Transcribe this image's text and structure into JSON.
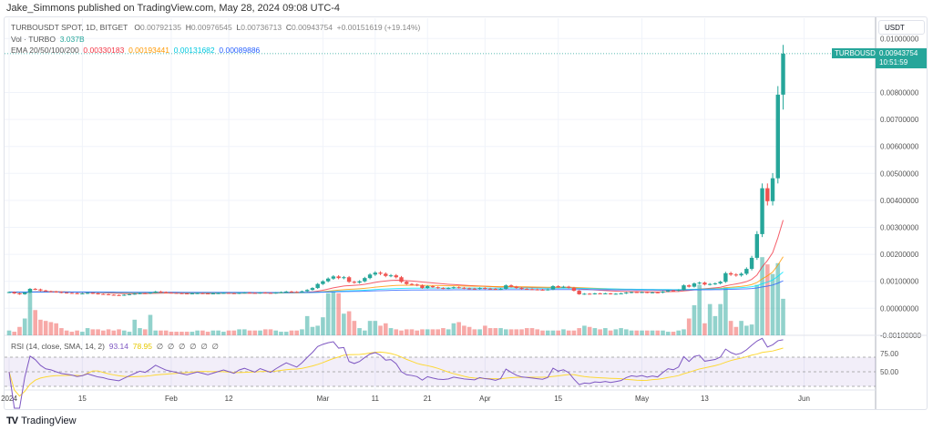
{
  "publisher": "Jake_Simmons published on TradingView.com, May 28, 2024 09:08 UTC-4",
  "legend": {
    "symbol": "TURBOUSDT SPOT, 1D, BITGET",
    "o_label": "O",
    "o": "0.00792135",
    "h_label": "H",
    "h": "0.00976545",
    "l_label": "L",
    "l": "0.00736713",
    "c_label": "C",
    "c": "0.00943754",
    "change": "+0.00151619 (+19.14%)",
    "vol_label": "Vol · TURBO",
    "vol": "3.037B",
    "ema_label": "EMA 20/50/100/200",
    "ema20": "0.00330183",
    "ema50": "0.00193441",
    "ema100": "0.00131682",
    "ema200": "0.00089886"
  },
  "rsi_legend": {
    "label": "RSI (14, close, SMA, 14, 2)",
    "rsi": "93.14",
    "sma": "78.95",
    "empty_values": [
      "∅",
      "∅",
      "∅",
      "∅",
      "∅",
      "∅"
    ]
  },
  "price_axis": {
    "currency": "USDT",
    "ticks": [
      "0.01000000",
      "0.00800000",
      "0.00700000",
      "0.00600000",
      "0.00500000",
      "0.00400000",
      "0.00300000",
      "0.00200000",
      "0.00100000",
      "0.00000000",
      "-0.00100000"
    ],
    "tick_values": [
      0.01,
      0.008,
      0.007,
      0.006,
      0.005,
      0.004,
      0.003,
      0.002,
      0.001,
      0,
      -0.001
    ]
  },
  "rsi_axis": {
    "ticks": [
      "75.00",
      "50.00"
    ],
    "tick_values": [
      75,
      50
    ]
  },
  "last_price_tag": {
    "symbol": "TURBOUSDT",
    "price": "0.00943754",
    "countdown": "10:51:59"
  },
  "time_axis": {
    "labels": [
      "2024",
      "15",
      "Feb",
      "12",
      "Mar",
      "11",
      "21",
      "Apr",
      "15",
      "May",
      "13",
      "Jun"
    ],
    "day_index": [
      0,
      14,
      31,
      42,
      60,
      70,
      80,
      91,
      105,
      121,
      133,
      152
    ]
  },
  "colors": {
    "up": "#26a69a",
    "down": "#ef5350",
    "ema20": "#f23645",
    "ema50": "#ff9800",
    "ema100": "#00e5ff",
    "ema200": "#2962ff",
    "rsi": "#7e57c2",
    "rsi_sma": "#fdd835"
  },
  "brand": "TradingView",
  "chart_data": {
    "type": "candlestick",
    "title": "TURBOUSDT SPOT, 1D, BITGET",
    "x_start": "2024-01-01",
    "x_end": "2024-05-28",
    "ylim": [
      -0.001,
      0.0105
    ],
    "last_high": 0.00976545,
    "last_low": 0.00736713,
    "closes": [
      0.0006,
      0.00055,
      0.00052,
      0.00058,
      0.00072,
      0.0007,
      0.00066,
      0.00063,
      0.00062,
      0.0006,
      0.00058,
      0.00057,
      0.00056,
      0.00054,
      0.00055,
      0.00057,
      0.00055,
      0.00053,
      0.00052,
      0.0005,
      0.00049,
      0.00048,
      0.0005,
      0.00052,
      0.00054,
      0.00056,
      0.00055,
      0.00058,
      0.00062,
      0.0006,
      0.00058,
      0.00057,
      0.00056,
      0.00055,
      0.00054,
      0.00055,
      0.00056,
      0.00055,
      0.00054,
      0.00055,
      0.00056,
      0.00057,
      0.00056,
      0.00055,
      0.00057,
      0.00058,
      0.00057,
      0.00056,
      0.00058,
      0.00057,
      0.00056,
      0.00058,
      0.0006,
      0.00062,
      0.00061,
      0.0006,
      0.00063,
      0.00068,
      0.00075,
      0.0009,
      0.001,
      0.0011,
      0.00118,
      0.00112,
      0.00115,
      0.00098,
      0.00095,
      0.001,
      0.00112,
      0.00125,
      0.00132,
      0.00128,
      0.0012,
      0.00122,
      0.00115,
      0.00098,
      0.0009,
      0.00088,
      0.00085,
      0.00075,
      0.00082,
      0.00078,
      0.00075,
      0.00074,
      0.00075,
      0.00078,
      0.00076,
      0.00074,
      0.00073,
      0.00072,
      0.00075,
      0.00073,
      0.00072,
      0.0007,
      0.00072,
      0.00085,
      0.0008,
      0.00075,
      0.00072,
      0.00071,
      0.0007,
      0.00069,
      0.00068,
      0.0007,
      0.00082,
      0.00078,
      0.0008,
      0.00076,
      0.00065,
      0.00052,
      0.00054,
      0.00053,
      0.00055,
      0.00054,
      0.00055,
      0.00053,
      0.00054,
      0.00055,
      0.00058,
      0.0006,
      0.00059,
      0.0006,
      0.00058,
      0.00059,
      0.00058,
      0.00062,
      0.00066,
      0.00065,
      0.00068,
      0.00085,
      0.0008,
      0.00092,
      0.00095,
      0.00088,
      0.0009,
      0.00092,
      0.00098,
      0.0013,
      0.00125,
      0.00122,
      0.00128,
      0.00146,
      0.00187,
      0.00275,
      0.00445,
      0.00397,
      0.00482,
      0.00792,
      0.00944
    ],
    "volume_billions": [
      0.4,
      0.3,
      0.7,
      1.4,
      3.8,
      2.1,
      1.3,
      1.2,
      1.1,
      1.0,
      0.6,
      0.4,
      0.3,
      0.4,
      0.3,
      0.6,
      0.5,
      0.5,
      0.4,
      0.5,
      0.4,
      0.5,
      0.4,
      0.3,
      1.3,
      0.6,
      0.5,
      1.7,
      0.4,
      0.4,
      0.4,
      0.3,
      0.3,
      0.3,
      0.3,
      0.3,
      0.4,
      0.4,
      0.3,
      0.4,
      0.4,
      0.3,
      0.4,
      0.4,
      0.5,
      0.5,
      0.4,
      0.4,
      0.4,
      0.5,
      0.5,
      0.4,
      0.3,
      0.3,
      0.4,
      0.4,
      0.5,
      1.6,
      0.7,
      0.8,
      1.5,
      3.5,
      3.6,
      3.5,
      1.8,
      2.0,
      1.2,
      0.6,
      0.4,
      1.2,
      1.2,
      0.8,
      1.0,
      0.6,
      0.5,
      0.4,
      0.5,
      0.5,
      0.4,
      0.5,
      0.5,
      0.5,
      0.5,
      0.6,
      0.5,
      1.0,
      1.1,
      0.8,
      0.7,
      0.5,
      0.5,
      0.8,
      0.6,
      0.6,
      0.6,
      0.5,
      0.5,
      0.5,
      0.5,
      0.6,
      0.6,
      0.5,
      0.4,
      0.4,
      0.4,
      0.4,
      0.5,
      0.4,
      0.4,
      0.6,
      0.8,
      0.7,
      0.6,
      0.5,
      0.6,
      0.4,
      0.5,
      0.6,
      0.5,
      0.4,
      0.4,
      0.4,
      0.4,
      0.4,
      0.4,
      0.4,
      0.3,
      0.3,
      0.4,
      0.5,
      1.4,
      2.5,
      4.2,
      1.0,
      2.6,
      1.6,
      2.6,
      4.0,
      1.2,
      0.7,
      1.2,
      0.8,
      0.9,
      4.2,
      6.5,
      5.9,
      5.1,
      6.0,
      3.037
    ]
  }
}
